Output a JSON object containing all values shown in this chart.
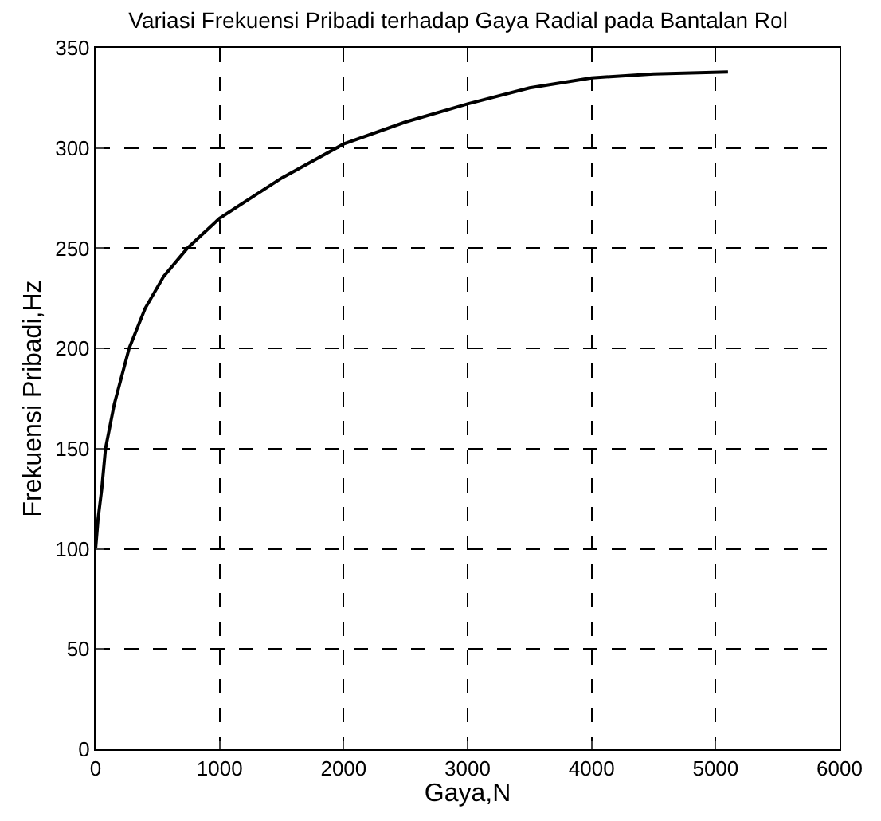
{
  "chart_data": {
    "type": "line",
    "title": "Variasi Frekuensi Pribadi terhadap Gaya Radial pada Bantalan Rol",
    "xlabel": "Gaya,N",
    "ylabel": "Frekuensi Pribadi,Hz",
    "x": [
      0,
      20,
      50,
      80,
      150,
      270,
      400,
      550,
      740,
      1000,
      1500,
      2000,
      2500,
      3000,
      3500,
      4000,
      4500,
      5100
    ],
    "series": [
      {
        "color": "#000000",
        "values": [
          100,
          115,
          130,
          150,
          172,
          200,
          220,
          236,
          250,
          265,
          285,
          302,
          313,
          322,
          330,
          335,
          337,
          338
        ]
      }
    ],
    "xlim": [
      0,
      6000
    ],
    "xticks": [
      0,
      1000,
      2000,
      3000,
      4000,
      5000,
      6000
    ],
    "ylim": [
      0,
      350
    ],
    "yticks": [
      0,
      50,
      100,
      150,
      200,
      250,
      300,
      350
    ],
    "grid": true,
    "marker": "none",
    "line_style": "solid"
  }
}
